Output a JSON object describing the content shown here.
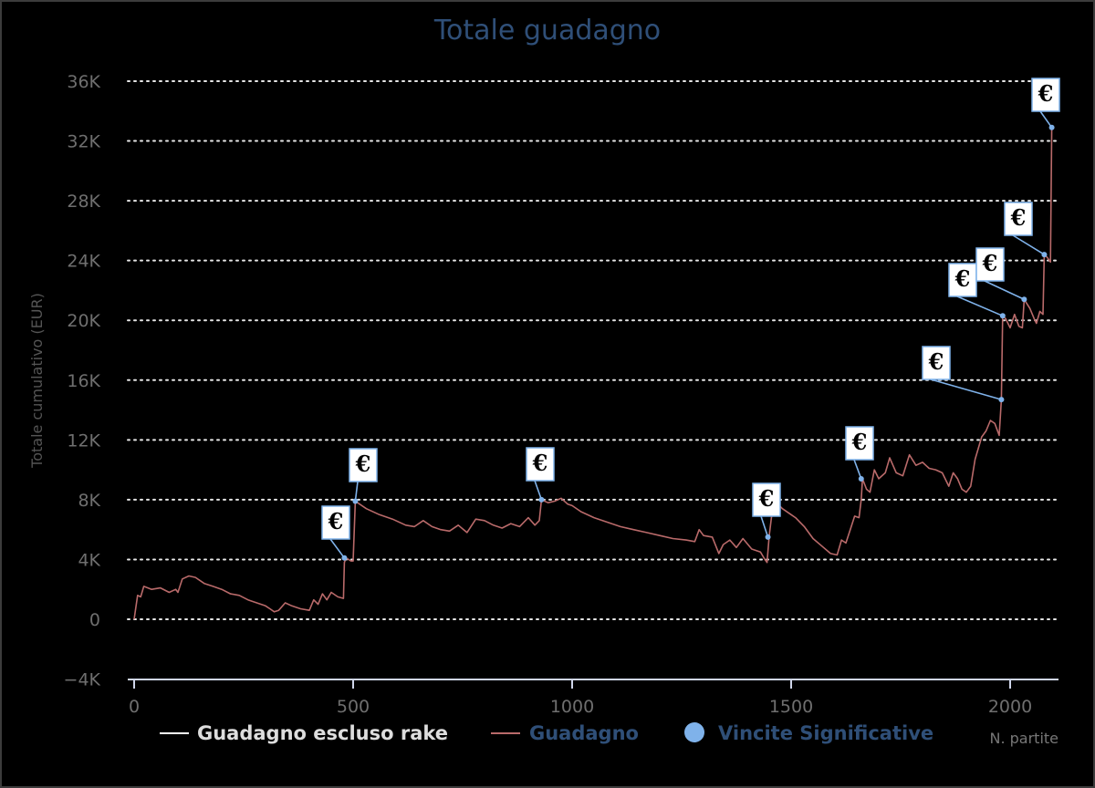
{
  "title": "Totale guadagno",
  "chart_data": {
    "type": "line",
    "title": "Totale guadagno",
    "xlabel": "N. partite",
    "ylabel": "Totale cumulativo (EUR)",
    "xlim": [
      -30,
      2115
    ],
    "ylim": [
      -4000,
      36000
    ],
    "x_ticks": [
      0,
      500,
      1000,
      1500,
      2000
    ],
    "x_tick_labels": [
      "0",
      "500",
      "1000",
      "1500",
      "2000"
    ],
    "y_ticks": [
      -4000,
      0,
      4000,
      8000,
      12000,
      16000,
      20000,
      24000,
      28000,
      32000,
      36000
    ],
    "y_tick_labels": [
      "−4K",
      "0",
      "4K",
      "8K",
      "12K",
      "16K",
      "20K",
      "24K",
      "28K",
      "32K",
      "36K"
    ],
    "grid": "horizontal dotted",
    "legend_position": "bottom",
    "colors": {
      "background": "#000000",
      "guadagno": "#b96a6a",
      "escluso_rake": "#ffffff",
      "vincite": "#7fb2ea",
      "title": "#2f4f78",
      "legend_inactive": "#2f4f78",
      "legend_active": "#dddddd"
    },
    "series": [
      {
        "name": "Guadagno escluso rake",
        "points": []
      },
      {
        "name": "Guadagno",
        "points": [
          [
            0,
            0
          ],
          [
            8,
            1600
          ],
          [
            15,
            1500
          ],
          [
            22,
            2200
          ],
          [
            40,
            2000
          ],
          [
            60,
            2100
          ],
          [
            80,
            1800
          ],
          [
            95,
            2000
          ],
          [
            100,
            1800
          ],
          [
            110,
            2700
          ],
          [
            125,
            2900
          ],
          [
            140,
            2800
          ],
          [
            160,
            2400
          ],
          [
            180,
            2200
          ],
          [
            200,
            2000
          ],
          [
            220,
            1700
          ],
          [
            240,
            1600
          ],
          [
            260,
            1300
          ],
          [
            280,
            1100
          ],
          [
            300,
            900
          ],
          [
            310,
            700
          ],
          [
            320,
            500
          ],
          [
            330,
            600
          ],
          [
            345,
            1100
          ],
          [
            360,
            900
          ],
          [
            380,
            700
          ],
          [
            400,
            600
          ],
          [
            410,
            1300
          ],
          [
            420,
            1000
          ],
          [
            430,
            1700
          ],
          [
            440,
            1300
          ],
          [
            450,
            1800
          ],
          [
            465,
            1500
          ],
          [
            478,
            1400
          ],
          [
            480,
            3800
          ],
          [
            484,
            4100
          ],
          [
            495,
            3900
          ],
          [
            500,
            3900
          ],
          [
            505,
            7900
          ],
          [
            530,
            7400
          ],
          [
            560,
            7000
          ],
          [
            590,
            6700
          ],
          [
            620,
            6300
          ],
          [
            640,
            6200
          ],
          [
            660,
            6600
          ],
          [
            680,
            6200
          ],
          [
            700,
            6000
          ],
          [
            720,
            5900
          ],
          [
            740,
            6300
          ],
          [
            760,
            5800
          ],
          [
            780,
            6700
          ],
          [
            800,
            6600
          ],
          [
            820,
            6300
          ],
          [
            840,
            6100
          ],
          [
            860,
            6400
          ],
          [
            880,
            6200
          ],
          [
            900,
            6800
          ],
          [
            915,
            6300
          ],
          [
            925,
            6600
          ],
          [
            930,
            8000
          ],
          [
            945,
            7800
          ],
          [
            960,
            7900
          ],
          [
            975,
            8100
          ],
          [
            990,
            7700
          ],
          [
            1000,
            7600
          ],
          [
            1020,
            7200
          ],
          [
            1050,
            6800
          ],
          [
            1080,
            6500
          ],
          [
            1110,
            6200
          ],
          [
            1140,
            6000
          ],
          [
            1170,
            5800
          ],
          [
            1200,
            5600
          ],
          [
            1230,
            5400
          ],
          [
            1260,
            5300
          ],
          [
            1280,
            5200
          ],
          [
            1290,
            6000
          ],
          [
            1300,
            5600
          ],
          [
            1320,
            5500
          ],
          [
            1335,
            4400
          ],
          [
            1345,
            5000
          ],
          [
            1360,
            5300
          ],
          [
            1375,
            4800
          ],
          [
            1390,
            5400
          ],
          [
            1410,
            4700
          ],
          [
            1430,
            4500
          ],
          [
            1440,
            4000
          ],
          [
            1445,
            3800
          ],
          [
            1450,
            5600
          ],
          [
            1458,
            7500
          ],
          [
            1470,
            7700
          ],
          [
            1480,
            7400
          ],
          [
            1500,
            7000
          ],
          [
            1510,
            6800
          ],
          [
            1530,
            6200
          ],
          [
            1550,
            5400
          ],
          [
            1570,
            4900
          ],
          [
            1590,
            4400
          ],
          [
            1605,
            4300
          ],
          [
            1615,
            5300
          ],
          [
            1625,
            5100
          ],
          [
            1635,
            6000
          ],
          [
            1645,
            6900
          ],
          [
            1655,
            6800
          ],
          [
            1660,
            8000
          ],
          [
            1663,
            9400
          ],
          [
            1672,
            8700
          ],
          [
            1680,
            8500
          ],
          [
            1690,
            10000
          ],
          [
            1700,
            9400
          ],
          [
            1715,
            9800
          ],
          [
            1725,
            10800
          ],
          [
            1740,
            9800
          ],
          [
            1755,
            9600
          ],
          [
            1770,
            11000
          ],
          [
            1785,
            10300
          ],
          [
            1800,
            10500
          ],
          [
            1815,
            10100
          ],
          [
            1830,
            10000
          ],
          [
            1845,
            9800
          ],
          [
            1860,
            8900
          ],
          [
            1870,
            9800
          ],
          [
            1880,
            9400
          ],
          [
            1890,
            8700
          ],
          [
            1900,
            8500
          ],
          [
            1910,
            8900
          ],
          [
            1920,
            10700
          ],
          [
            1935,
            12200
          ],
          [
            1945,
            12600
          ],
          [
            1955,
            13300
          ],
          [
            1965,
            13100
          ],
          [
            1975,
            12300
          ],
          [
            1980,
            14700
          ],
          [
            1983,
            20300
          ],
          [
            1990,
            20100
          ],
          [
            2000,
            19500
          ],
          [
            2010,
            20400
          ],
          [
            2020,
            19600
          ],
          [
            2028,
            19500
          ],
          [
            2032,
            21400
          ],
          [
            2045,
            20800
          ],
          [
            2055,
            20100
          ],
          [
            2060,
            19800
          ],
          [
            2068,
            20600
          ],
          [
            2075,
            20400
          ],
          [
            2078,
            24400
          ],
          [
            2085,
            24200
          ],
          [
            2092,
            23900
          ],
          [
            2095,
            32900
          ]
        ]
      }
    ],
    "vincite_significative": [
      {
        "x": 480,
        "y": 4100,
        "label": "€"
      },
      {
        "x": 505,
        "y": 7900,
        "label": "€"
      },
      {
        "x": 930,
        "y": 8000,
        "label": "€"
      },
      {
        "x": 1447,
        "y": 5500,
        "label": "€"
      },
      {
        "x": 1660,
        "y": 9400,
        "label": "€"
      },
      {
        "x": 1980,
        "y": 14700,
        "label": "€"
      },
      {
        "x": 1983,
        "y": 20300,
        "label": "€"
      },
      {
        "x": 2032,
        "y": 21400,
        "label": "€"
      },
      {
        "x": 2078,
        "y": 24400,
        "label": "€"
      },
      {
        "x": 2095,
        "y": 32900,
        "label": "€"
      }
    ]
  },
  "legend": {
    "items": [
      {
        "label": "Guadagno escluso rake",
        "symbol": "line",
        "color": "#ffffff",
        "text_color": "#dddddd"
      },
      {
        "label": "Guadagno",
        "symbol": "line",
        "color": "#b96a6a",
        "text_color": "#2f4f78"
      },
      {
        "label": "Vincite Significative",
        "symbol": "dot",
        "color": "#7fb2ea",
        "text_color": "#2f4f78"
      }
    ]
  }
}
